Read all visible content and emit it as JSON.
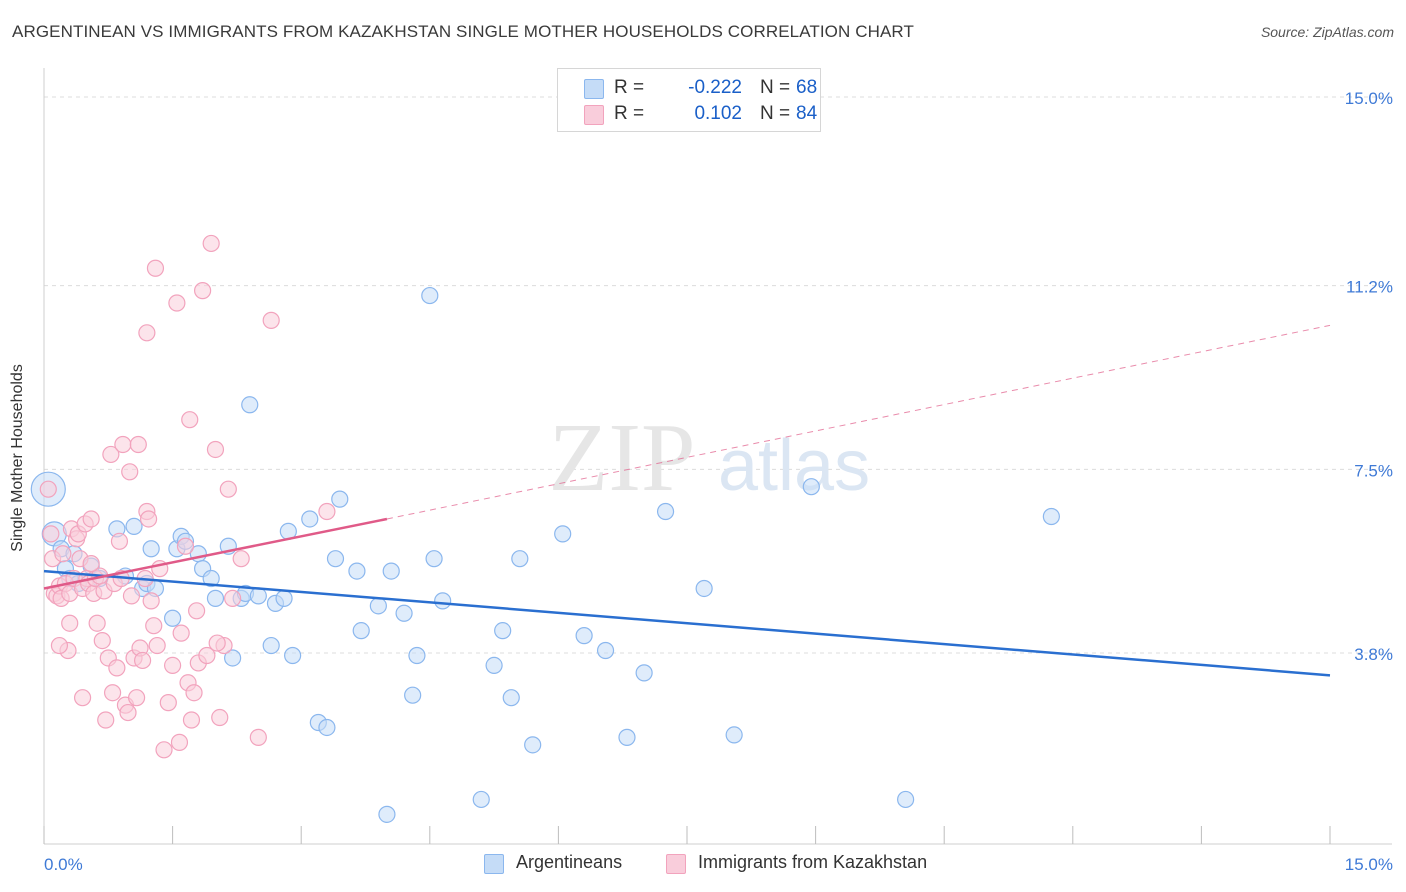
{
  "title": "ARGENTINEAN VS IMMIGRANTS FROM KAZAKHSTAN SINGLE MOTHER HOUSEHOLDS CORRELATION CHART",
  "source": "Source: ZipAtlas.com",
  "watermark": {
    "zip": "ZIP",
    "atlas": "atlas"
  },
  "legend": {
    "r_label": "R =",
    "n_label": "N =",
    "rows": [
      {
        "r": "-0.222",
        "n": "68"
      },
      {
        "r": "0.102",
        "n": "84"
      }
    ]
  },
  "chart_data": {
    "type": "scatter",
    "title": "ARGENTINEAN VS IMMIGRANTS FROM KAZAKHSTAN SINGLE MOTHER HOUSEHOLDS CORRELATION CHART",
    "xlabel": "",
    "ylabel": "Single Mother Households",
    "xlim": [
      0,
      15
    ],
    "ylim": [
      0,
      15.5
    ],
    "x_tick_labels": {
      "min": "0.0%",
      "max": "15.0%"
    },
    "y_ticks": [
      {
        "value": 3.8,
        "label": "3.8%"
      },
      {
        "value": 7.5,
        "label": "7.5%"
      },
      {
        "value": 11.2,
        "label": "11.2%"
      },
      {
        "value": 15.0,
        "label": "15.0%"
      }
    ],
    "series": [
      {
        "name": "Argentineans",
        "color": "#8bb7ee",
        "fill": "#c5dcf7",
        "line_color": "#2a6fd0",
        "r": -0.222,
        "n": 68,
        "trend": {
          "x": [
            0,
            15
          ],
          "y": [
            5.45,
            3.35
          ]
        },
        "points": [
          [
            0.05,
            7.1,
            "big"
          ],
          [
            0.12,
            6.2,
            "med"
          ],
          [
            0.2,
            5.9
          ],
          [
            0.25,
            5.5
          ],
          [
            0.3,
            5.3
          ],
          [
            0.35,
            5.8
          ],
          [
            0.4,
            5.2
          ],
          [
            0.55,
            5.55
          ],
          [
            0.65,
            5.3
          ],
          [
            0.85,
            6.3
          ],
          [
            0.95,
            5.35
          ],
          [
            1.05,
            6.35
          ],
          [
            1.15,
            5.1
          ],
          [
            1.2,
            5.2
          ],
          [
            1.25,
            5.9
          ],
          [
            1.3,
            5.1
          ],
          [
            1.5,
            4.5
          ],
          [
            1.55,
            5.9
          ],
          [
            1.6,
            6.15
          ],
          [
            1.65,
            6.05
          ],
          [
            1.8,
            5.8
          ],
          [
            1.85,
            5.5
          ],
          [
            1.95,
            5.3
          ],
          [
            2.0,
            4.9
          ],
          [
            2.15,
            5.95
          ],
          [
            2.2,
            3.7
          ],
          [
            2.3,
            4.9
          ],
          [
            2.35,
            5.0
          ],
          [
            2.4,
            8.8
          ],
          [
            2.5,
            4.95
          ],
          [
            2.65,
            3.95
          ],
          [
            2.7,
            4.8
          ],
          [
            2.8,
            4.9
          ],
          [
            2.85,
            6.25
          ],
          [
            2.9,
            3.75
          ],
          [
            3.1,
            6.5
          ],
          [
            3.2,
            2.4
          ],
          [
            3.3,
            2.3
          ],
          [
            3.4,
            5.7
          ],
          [
            3.45,
            6.9
          ],
          [
            3.65,
            5.45
          ],
          [
            3.7,
            4.25
          ],
          [
            3.9,
            4.75
          ],
          [
            4.0,
            0.55
          ],
          [
            4.05,
            5.45
          ],
          [
            4.2,
            4.6
          ],
          [
            4.3,
            2.95
          ],
          [
            4.35,
            3.75
          ],
          [
            4.5,
            11.0
          ],
          [
            4.55,
            5.7
          ],
          [
            4.65,
            4.85
          ],
          [
            5.1,
            0.85
          ],
          [
            5.25,
            3.55
          ],
          [
            5.35,
            4.25
          ],
          [
            5.45,
            2.9
          ],
          [
            5.55,
            5.7
          ],
          [
            5.7,
            1.95
          ],
          [
            6.05,
            6.2
          ],
          [
            6.3,
            4.15
          ],
          [
            6.55,
            3.85
          ],
          [
            6.8,
            2.1
          ],
          [
            7.0,
            3.4
          ],
          [
            7.25,
            6.65
          ],
          [
            7.7,
            5.1
          ],
          [
            8.05,
            2.15
          ],
          [
            8.95,
            7.15
          ],
          [
            10.05,
            0.85
          ],
          [
            11.75,
            6.55
          ]
        ]
      },
      {
        "name": "Immigrants from Kazakhstan",
        "color": "#f2a3bd",
        "fill": "#f9cddb",
        "line_color": "#e05a88",
        "r": 0.102,
        "n": 84,
        "trend": {
          "x": [
            0,
            4.0
          ],
          "y": [
            5.1,
            6.5
          ]
        },
        "trend_ext": {
          "x": [
            4.0,
            15
          ],
          "y": [
            6.5,
            10.4
          ]
        },
        "points": [
          [
            0.05,
            7.1
          ],
          [
            0.08,
            6.2
          ],
          [
            0.1,
            5.7
          ],
          [
            0.12,
            5.0
          ],
          [
            0.15,
            4.95
          ],
          [
            0.18,
            5.15
          ],
          [
            0.2,
            4.9
          ],
          [
            0.22,
            5.8
          ],
          [
            0.25,
            5.2
          ],
          [
            0.28,
            3.85
          ],
          [
            0.3,
            5.0
          ],
          [
            0.32,
            6.3
          ],
          [
            0.35,
            5.3
          ],
          [
            0.38,
            6.1
          ],
          [
            0.4,
            6.2
          ],
          [
            0.42,
            5.7
          ],
          [
            0.45,
            5.1
          ],
          [
            0.48,
            6.4
          ],
          [
            0.5,
            5.3
          ],
          [
            0.52,
            5.2
          ],
          [
            0.55,
            6.5
          ],
          [
            0.58,
            5.0
          ],
          [
            0.6,
            5.3
          ],
          [
            0.62,
            4.4
          ],
          [
            0.65,
            5.35
          ],
          [
            0.68,
            4.05
          ],
          [
            0.7,
            5.05
          ],
          [
            0.72,
            2.45
          ],
          [
            0.75,
            3.7
          ],
          [
            0.78,
            7.8
          ],
          [
            0.8,
            3.0
          ],
          [
            0.82,
            5.2
          ],
          [
            0.85,
            3.5
          ],
          [
            0.88,
            6.05
          ],
          [
            0.9,
            5.3
          ],
          [
            0.92,
            8.0
          ],
          [
            0.95,
            2.75
          ],
          [
            0.98,
            2.6
          ],
          [
            1.0,
            7.45
          ],
          [
            1.02,
            4.95
          ],
          [
            1.05,
            3.7
          ],
          [
            1.08,
            2.9
          ],
          [
            1.1,
            8.0
          ],
          [
            1.12,
            3.9
          ],
          [
            1.15,
            3.65
          ],
          [
            1.18,
            5.3
          ],
          [
            1.2,
            6.65
          ],
          [
            1.22,
            6.5
          ],
          [
            1.25,
            4.85
          ],
          [
            1.28,
            4.35
          ],
          [
            1.3,
            11.55
          ],
          [
            1.32,
            3.95
          ],
          [
            1.35,
            5.5
          ],
          [
            1.4,
            1.85
          ],
          [
            1.45,
            2.8
          ],
          [
            1.5,
            3.55
          ],
          [
            1.55,
            10.85
          ],
          [
            1.58,
            2.0
          ],
          [
            1.6,
            4.2
          ],
          [
            1.65,
            5.95
          ],
          [
            1.68,
            3.2
          ],
          [
            1.7,
            8.5
          ],
          [
            1.72,
            2.45
          ],
          [
            1.75,
            3.0
          ],
          [
            1.78,
            4.65
          ],
          [
            1.8,
            3.6
          ],
          [
            1.85,
            11.1
          ],
          [
            1.9,
            3.75
          ],
          [
            1.95,
            12.05
          ],
          [
            2.0,
            7.9
          ],
          [
            2.05,
            2.5
          ],
          [
            2.1,
            3.95
          ],
          [
            2.15,
            7.1
          ],
          [
            2.2,
            4.9
          ],
          [
            2.3,
            5.7
          ],
          [
            2.5,
            2.1
          ],
          [
            2.65,
            10.5
          ],
          [
            3.3,
            6.65
          ],
          [
            0.18,
            3.95
          ],
          [
            0.3,
            4.4
          ],
          [
            0.45,
            2.9
          ],
          [
            0.55,
            5.6
          ],
          [
            1.2,
            10.25
          ],
          [
            2.02,
            4.0
          ]
        ]
      }
    ]
  }
}
